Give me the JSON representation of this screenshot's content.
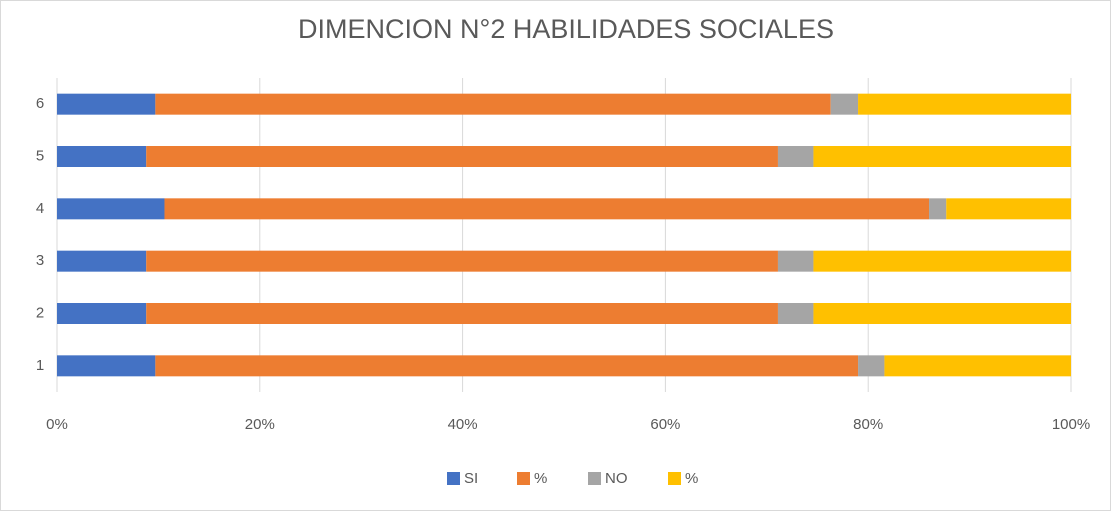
{
  "chart_data": {
    "type": "bar",
    "orientation": "horizontal",
    "stacked": true,
    "title": "DIMENCION N°2 HABILIDADES SOCIALES",
    "categories": [
      "1",
      "2",
      "3",
      "4",
      "5",
      "6"
    ],
    "series": [
      {
        "name": "SI",
        "color": "#4472c4",
        "values": [
          9.7,
          8.8,
          8.8,
          10.6,
          8.8,
          9.7
        ]
      },
      {
        "name": "%",
        "color": "#ed7d31",
        "values": [
          69.3,
          62.3,
          62.3,
          75.4,
          62.3,
          66.6
        ]
      },
      {
        "name": "NO",
        "color": "#a5a5a5",
        "values": [
          2.6,
          3.5,
          3.5,
          1.7,
          3.5,
          2.7
        ]
      },
      {
        "name": "%",
        "color": "#ffc000",
        "values": [
          18.4,
          25.4,
          25.4,
          12.3,
          25.4,
          21.0
        ]
      }
    ],
    "xlim": [
      0,
      100
    ],
    "xticks": [
      {
        "value": 0,
        "label": "0%"
      },
      {
        "value": 20,
        "label": "20%"
      },
      {
        "value": 40,
        "label": "40%"
      },
      {
        "value": 60,
        "label": "60%"
      },
      {
        "value": 80,
        "label": "80%"
      },
      {
        "value": 100,
        "label": "100%"
      }
    ],
    "grid": true,
    "legend": "bottom"
  }
}
